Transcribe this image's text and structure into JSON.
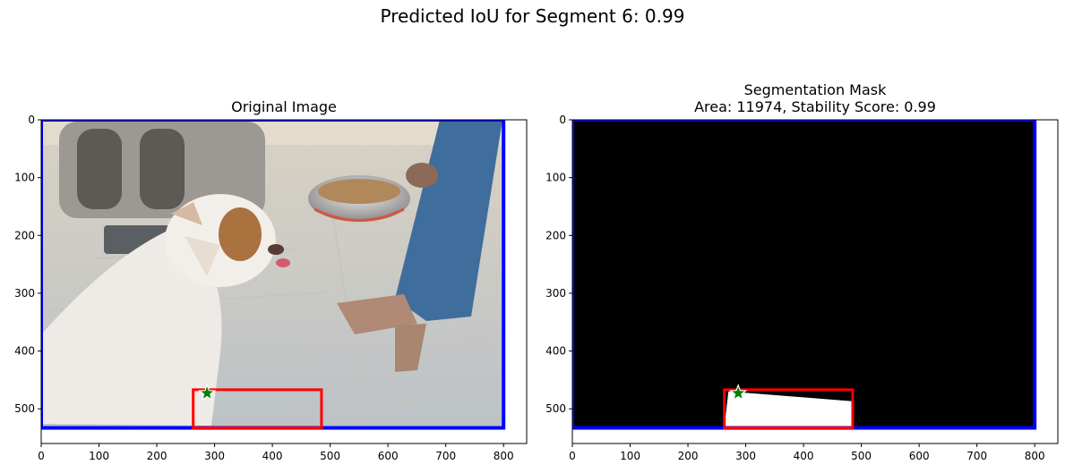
{
  "figure": {
    "suptitle": "Predicted IoU for Segment 6: 0.99"
  },
  "colors": {
    "bbox": "#0000ff",
    "prediction_box": "#ff0000",
    "point": "#008000",
    "mask_bg": "#000000",
    "mask_fg": "#ffffff"
  },
  "panels": [
    {
      "title_lines": [
        "Original Image"
      ],
      "content": "photo: bulldog looking up at a person holding a metal food bowl on a tiled floor"
    },
    {
      "title_lines": [
        "Segmentation Mask",
        "Area: 11974, Stability Score: 0.99"
      ],
      "content": "binary mask"
    }
  ],
  "chart_data": [
    {
      "type": "image",
      "title": "Original Image",
      "xlim": [
        0,
        840
      ],
      "ylim": [
        560,
        0
      ],
      "xticks": [
        0,
        100,
        200,
        300,
        400,
        500,
        600,
        700,
        800
      ],
      "yticks": [
        0,
        100,
        200,
        300,
        400,
        500
      ],
      "image_extent": {
        "x": [
          0,
          800
        ],
        "y": [
          0,
          533
        ]
      },
      "bbox": {
        "x0": 0,
        "y0": 0,
        "x1": 800,
        "y1": 533,
        "color": "blue"
      },
      "prediction_box": {
        "x0": 263,
        "y0": 467,
        "x1": 485,
        "y1": 533,
        "color": "red"
      },
      "point": {
        "x": 287,
        "y": 473,
        "marker": "star",
        "color": "green"
      }
    },
    {
      "type": "image",
      "title": "Segmentation Mask\nArea: 11974, Stability Score: 0.99",
      "xlim": [
        0,
        840
      ],
      "ylim": [
        560,
        0
      ],
      "xticks": [
        0,
        100,
        200,
        300,
        400,
        500,
        600,
        700,
        800
      ],
      "yticks": [
        0,
        100,
        200,
        300,
        400,
        500
      ],
      "image_extent": {
        "x": [
          0,
          800
        ],
        "y": [
          0,
          533
        ]
      },
      "mask_polygon": [
        [
          263,
          533
        ],
        [
          270,
          470
        ],
        [
          485,
          487
        ],
        [
          485,
          533
        ]
      ],
      "bbox": {
        "x0": 0,
        "y0": 0,
        "x1": 800,
        "y1": 533,
        "color": "blue"
      },
      "prediction_box": {
        "x0": 263,
        "y0": 467,
        "x1": 485,
        "y1": 533,
        "color": "red"
      },
      "point": {
        "x": 287,
        "y": 473,
        "marker": "star",
        "color": "green"
      }
    }
  ]
}
